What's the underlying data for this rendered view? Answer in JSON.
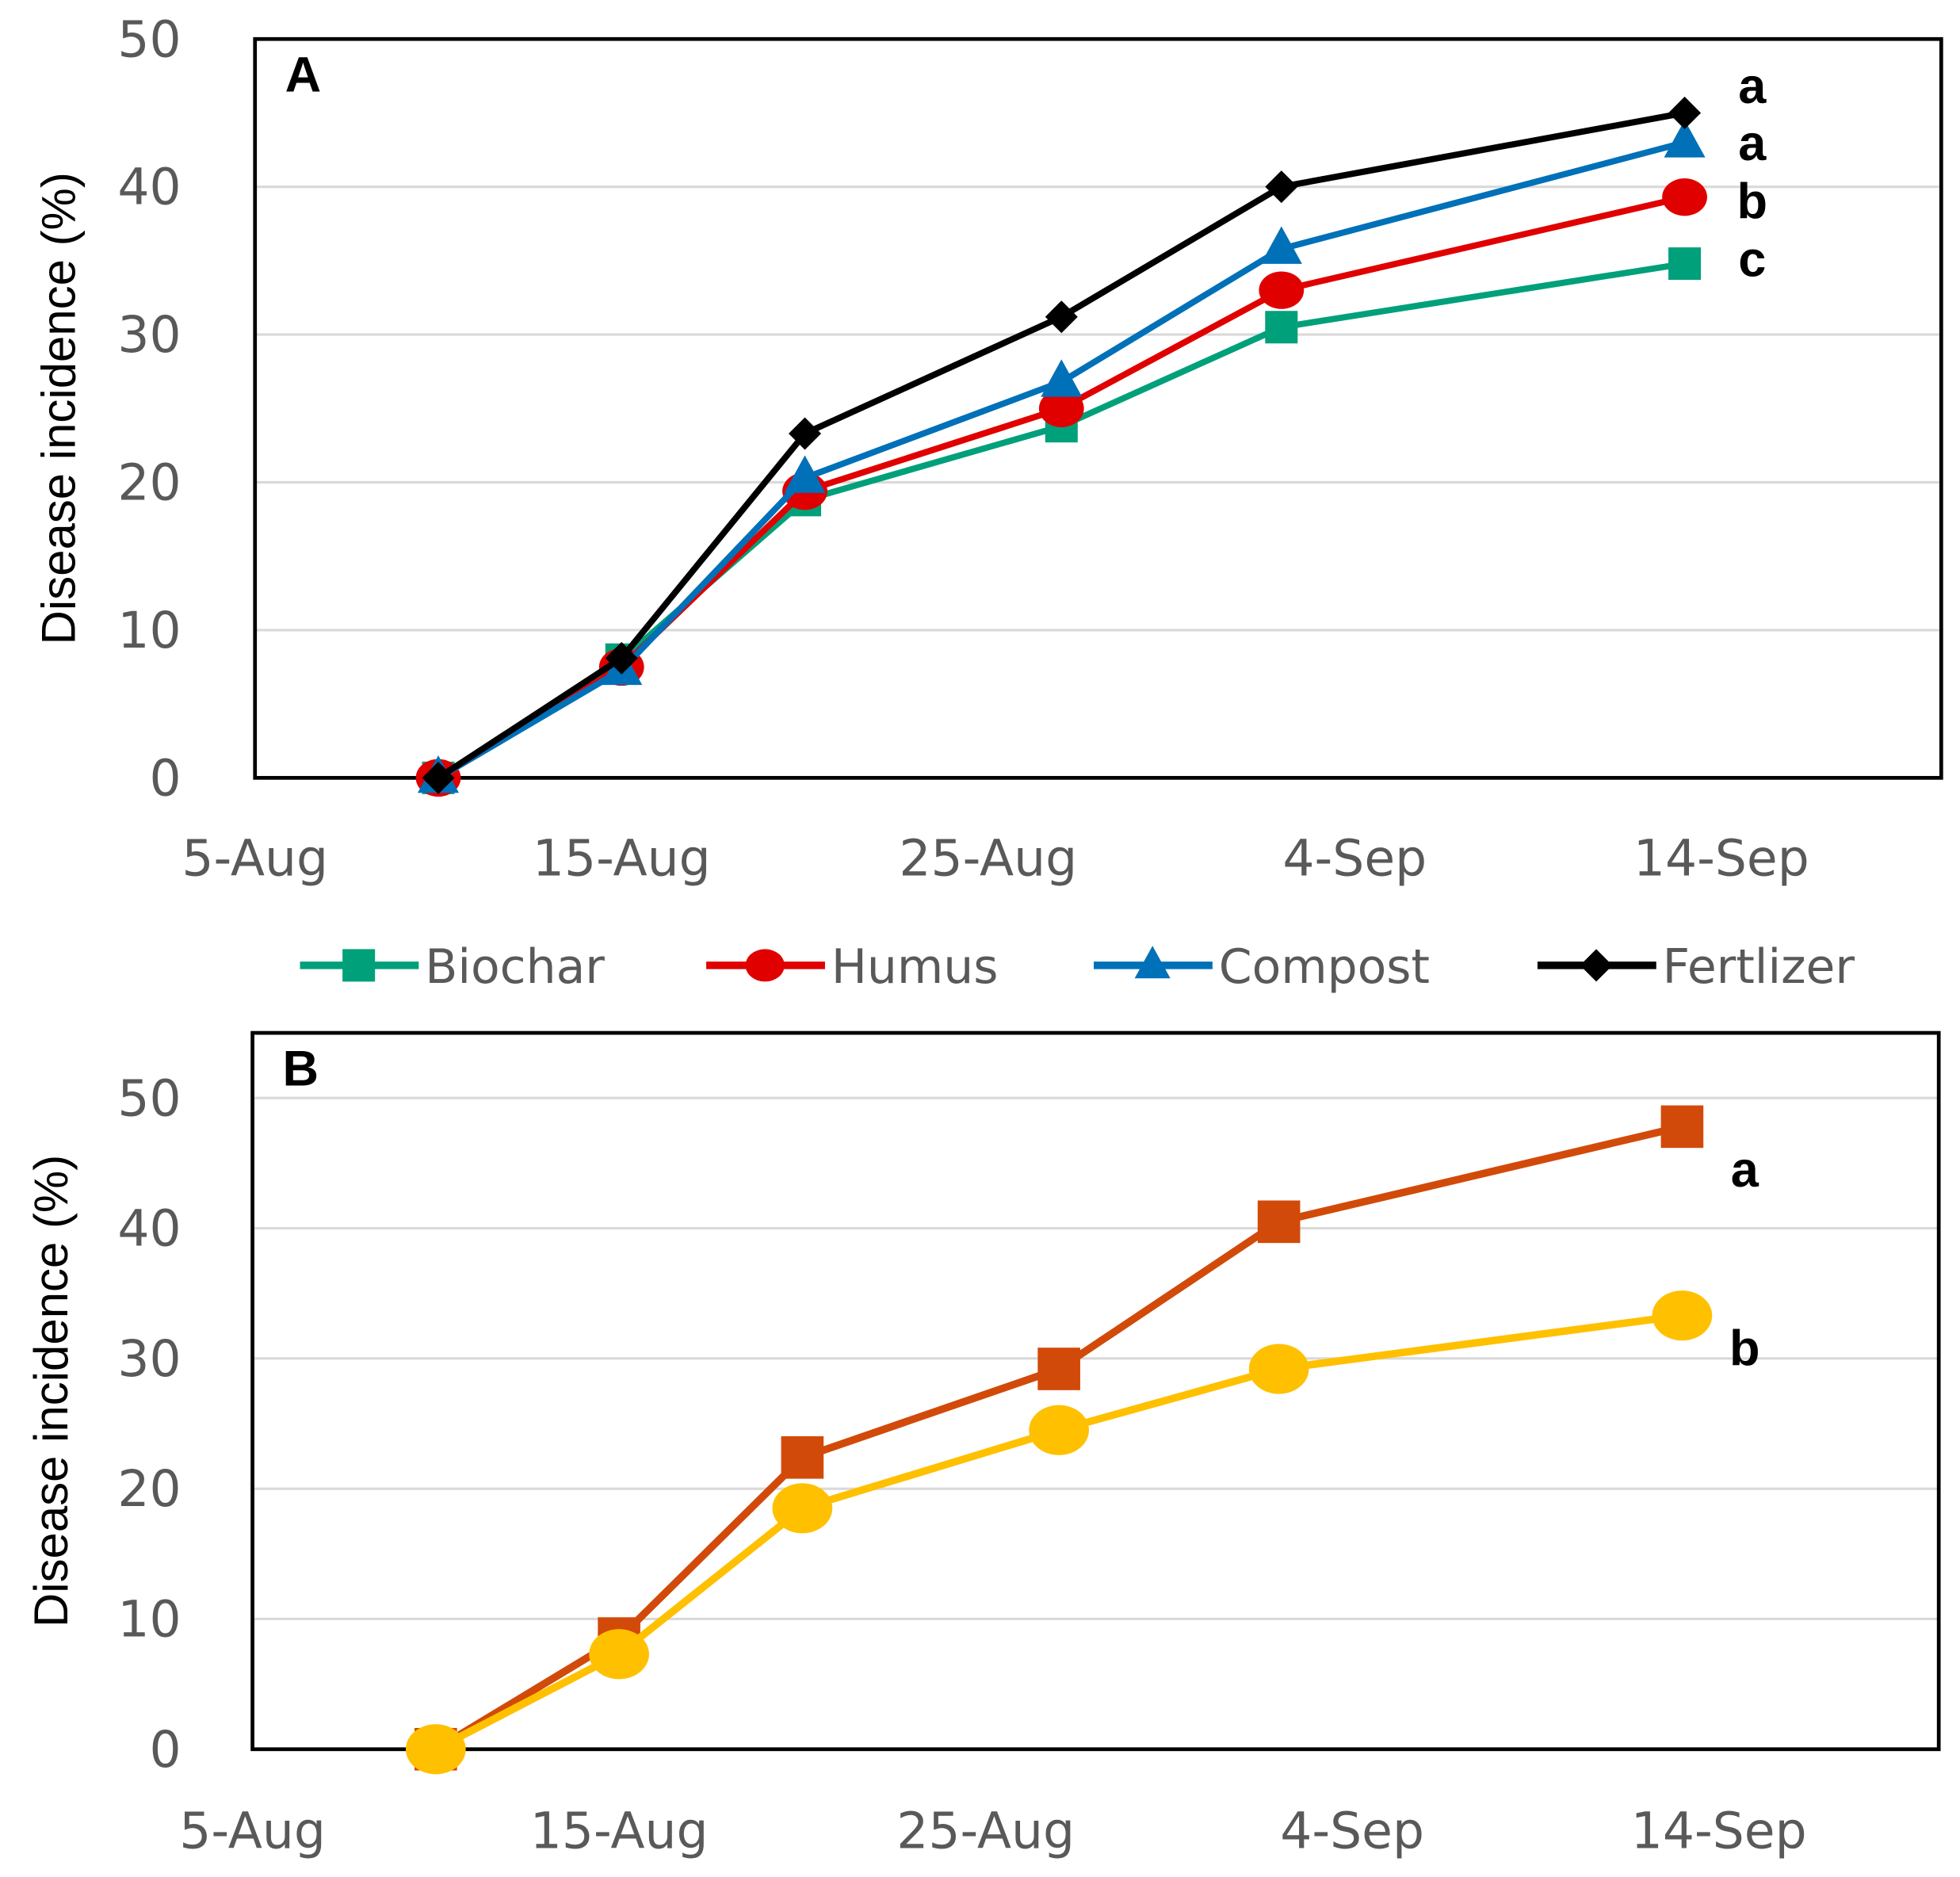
{
  "chart_data": [
    {
      "type": "line",
      "panel_label": "A",
      "ylabel": "Disease incidence (%)",
      "xlabel": "",
      "ylim": [
        0,
        50
      ],
      "yticks": [
        "0",
        "10",
        "20",
        "30",
        "40",
        "50"
      ],
      "xticks": [
        "5-Aug",
        "15-Aug",
        "25-Aug",
        "4-Sep",
        "14-Sep"
      ],
      "xlim_days": [
        0,
        46
      ],
      "x_days_from_5Aug": [
        5,
        10,
        15,
        22,
        28,
        39
      ],
      "grid": true,
      "legend_position": "bottom",
      "series": [
        {
          "name": "Biochar",
          "color": "#00a07a",
          "marker": "square",
          "values": [
            0,
            8.0,
            18.8,
            23.8,
            30.5,
            34.8
          ],
          "letter": "c"
        },
        {
          "name": "Humus",
          "color": "#e00000",
          "marker": "circle",
          "values": [
            0,
            7.5,
            19.4,
            25.0,
            33.0,
            39.3
          ],
          "letter": "b"
        },
        {
          "name": "Compost",
          "color": "#0070b8",
          "marker": "triangle",
          "values": [
            0,
            7.3,
            20.3,
            26.8,
            35.8,
            43.0
          ],
          "letter": "a"
        },
        {
          "name": "Fertlizer",
          "color": "#000000",
          "marker": "diamond",
          "values": [
            0,
            8.1,
            23.3,
            31.2,
            40.0,
            45.0
          ],
          "letter": "a"
        }
      ]
    },
    {
      "type": "line",
      "panel_label": "B",
      "ylabel": "Disease incidence (%)",
      "xlabel": "",
      "ylim": [
        0,
        55
      ],
      "yticks": [
        "0",
        "10",
        "20",
        "30",
        "40",
        "50"
      ],
      "xticks": [
        "5-Aug",
        "15-Aug",
        "25-Aug",
        "4-Sep",
        "14-Sep"
      ],
      "xlim_days": [
        0,
        46
      ],
      "x_days_from_5Aug": [
        5,
        10,
        15,
        22,
        28,
        39
      ],
      "grid": true,
      "series": [
        {
          "color": "#d24a0a",
          "marker": "square",
          "values": [
            0,
            8.5,
            22.4,
            29.2,
            40.5,
            47.8
          ],
          "letter": "a"
        },
        {
          "color": "#ffc000",
          "marker": "circle",
          "values": [
            0,
            7.3,
            18.5,
            24.5,
            29.2,
            33.3
          ],
          "letter": "b"
        }
      ]
    }
  ]
}
